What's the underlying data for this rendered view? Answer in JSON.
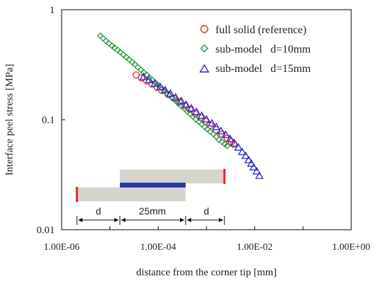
{
  "chart_data": {
    "type": "scatter",
    "title": "",
    "xlabel": "distance from the corner tip [mm]",
    "ylabel": "Interface peel stress [MPa]",
    "xscale": "log",
    "yscale": "log",
    "xlim": [
      1e-06,
      1
    ],
    "ylim": [
      0.01,
      1
    ],
    "xticks": [
      {
        "value": 1e-06,
        "label": "1.00E-06"
      },
      {
        "value": 0.0001,
        "label": "1.00E-04"
      },
      {
        "value": 0.01,
        "label": "1.00E-02"
      },
      {
        "value": 1,
        "label": "1.00E+00"
      }
    ],
    "yticks": [
      {
        "value": 0.01,
        "label": "0.01"
      },
      {
        "value": 0.1,
        "label": "0.1"
      },
      {
        "value": 1,
        "label": "1"
      }
    ],
    "grid": false,
    "legend_position": "top-right",
    "series": [
      {
        "name": "full solid (reference)",
        "marker": "circle",
        "color": "#e8202a",
        "points": [
          [
            3.5e-05,
            0.255
          ],
          [
            4.5e-05,
            0.24
          ],
          [
            5.8e-05,
            0.225
          ],
          [
            7.5e-05,
            0.21
          ],
          [
            9.5e-05,
            0.197
          ],
          [
            0.00012,
            0.184
          ],
          [
            0.00016,
            0.17
          ],
          [
            0.00021,
            0.157
          ],
          [
            0.00027,
            0.146
          ],
          [
            0.00035,
            0.134
          ],
          [
            0.00045,
            0.124
          ],
          [
            0.00058,
            0.114
          ],
          [
            0.00075,
            0.105
          ],
          [
            0.00095,
            0.097
          ],
          [
            0.0012,
            0.089
          ],
          [
            0.0016,
            0.081
          ],
          [
            0.0021,
            0.074
          ],
          [
            0.0027,
            0.068
          ],
          [
            0.0033,
            0.063
          ],
          [
            0.0037,
            0.06
          ]
        ]
      },
      {
        "name": "sub-model d=10mm",
        "marker": "diamond",
        "color": "#1f9a3a",
        "points": [
          [
            6.3e-06,
            0.58
          ],
          [
            7.2e-06,
            0.55
          ],
          [
            8.3e-06,
            0.52
          ],
          [
            9.5e-06,
            0.495
          ],
          [
            1.1e-05,
            0.47
          ],
          [
            1.25e-05,
            0.45
          ],
          [
            1.45e-05,
            0.43
          ],
          [
            1.65e-05,
            0.41
          ],
          [
            1.9e-05,
            0.39
          ],
          [
            2.2e-05,
            0.37
          ],
          [
            2.5e-05,
            0.352
          ],
          [
            2.9e-05,
            0.334
          ],
          [
            3.3e-05,
            0.318
          ],
          [
            3.8e-05,
            0.3
          ],
          [
            4.4e-05,
            0.284
          ],
          [
            5e-05,
            0.27
          ],
          [
            5.8e-05,
            0.255
          ],
          [
            6.6e-05,
            0.242
          ],
          [
            7.6e-05,
            0.229
          ],
          [
            8.8e-05,
            0.217
          ],
          [
            0.0001,
            0.206
          ],
          [
            0.000115,
            0.195
          ],
          [
            0.000132,
            0.185
          ],
          [
            0.00015,
            0.175
          ],
          [
            0.00017,
            0.166
          ],
          [
            0.0002,
            0.157
          ],
          [
            0.00023,
            0.149
          ],
          [
            0.00026,
            0.141
          ],
          [
            0.0003,
            0.133
          ],
          [
            0.00035,
            0.126
          ],
          [
            0.0004,
            0.119
          ],
          [
            0.00046,
            0.113
          ],
          [
            0.00053,
            0.107
          ],
          [
            0.0006,
            0.101
          ],
          [
            0.0007,
            0.096
          ],
          [
            0.0008,
            0.091
          ],
          [
            0.00092,
            0.086
          ],
          [
            0.00105,
            0.082
          ],
          [
            0.0012,
            0.078
          ],
          [
            0.0014,
            0.074
          ],
          [
            0.0016,
            0.07
          ],
          [
            0.0018,
            0.066
          ],
          [
            0.0021,
            0.063
          ],
          [
            0.0024,
            0.06
          ],
          [
            0.0027,
            0.058
          ]
        ]
      },
      {
        "name": "sub-model d=15mm",
        "marker": "triangle",
        "color": "#2525d0",
        "points": [
          [
            5e-05,
            0.245
          ],
          [
            6.5e-05,
            0.23
          ],
          [
            8.5e-05,
            0.214
          ],
          [
            0.00011,
            0.199
          ],
          [
            0.00014,
            0.186
          ],
          [
            0.00018,
            0.173
          ],
          [
            0.00023,
            0.16
          ],
          [
            0.0003,
            0.148
          ],
          [
            0.00038,
            0.137
          ],
          [
            0.00049,
            0.127
          ],
          [
            0.00062,
            0.118
          ],
          [
            0.0008,
            0.109
          ],
          [
            0.001,
            0.101
          ],
          [
            0.0013,
            0.093
          ],
          [
            0.0016,
            0.086
          ],
          [
            0.002,
            0.079
          ],
          [
            0.0025,
            0.073
          ],
          [
            0.0031,
            0.067
          ],
          [
            0.0038,
            0.061
          ],
          [
            0.0046,
            0.056
          ],
          [
            0.0055,
            0.051
          ],
          [
            0.0065,
            0.047
          ],
          [
            0.0075,
            0.043
          ],
          [
            0.0085,
            0.04
          ],
          [
            0.0095,
            0.037
          ],
          [
            0.011,
            0.034
          ],
          [
            0.0125,
            0.031
          ]
        ]
      }
    ],
    "inset": {
      "label_left": "d",
      "label_middle": "25mm",
      "label_right": "d",
      "fill_color": "#d6d4cc",
      "bar_color": "#2b3aa8",
      "mark_color": "#e8202a"
    }
  }
}
